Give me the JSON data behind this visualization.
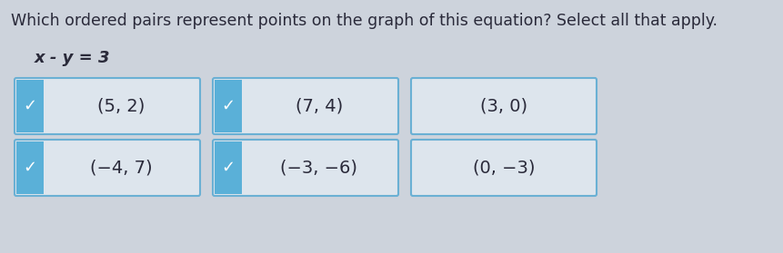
{
  "title": "Which ordered pairs represent points on the graph of this equation? Select all that apply.",
  "equation": "x - y = 3",
  "background_color": "#cdd3dc",
  "box_border_color": "#6ab0d4",
  "box_bg_color": "#dde5ed",
  "check_tab_color": "#5ab0d8",
  "check_color": "#ffffff",
  "text_color": "#2a2a3a",
  "options": [
    {
      "label": "(5, 2)",
      "row": 0,
      "col": 0,
      "checked": true
    },
    {
      "label": "(7, 4)",
      "row": 0,
      "col": 1,
      "checked": true
    },
    {
      "label": "(3, 0)",
      "row": 0,
      "col": 2,
      "checked": false
    },
    {
      "label": "(−4, 7)",
      "row": 1,
      "col": 0,
      "checked": true
    },
    {
      "label": "(−3, −6)",
      "row": 1,
      "col": 1,
      "checked": true
    },
    {
      "label": "(0, −3)",
      "row": 1,
      "col": 2,
      "checked": false
    }
  ],
  "title_fontsize": 12.5,
  "equation_fontsize": 13,
  "option_fontsize": 14
}
